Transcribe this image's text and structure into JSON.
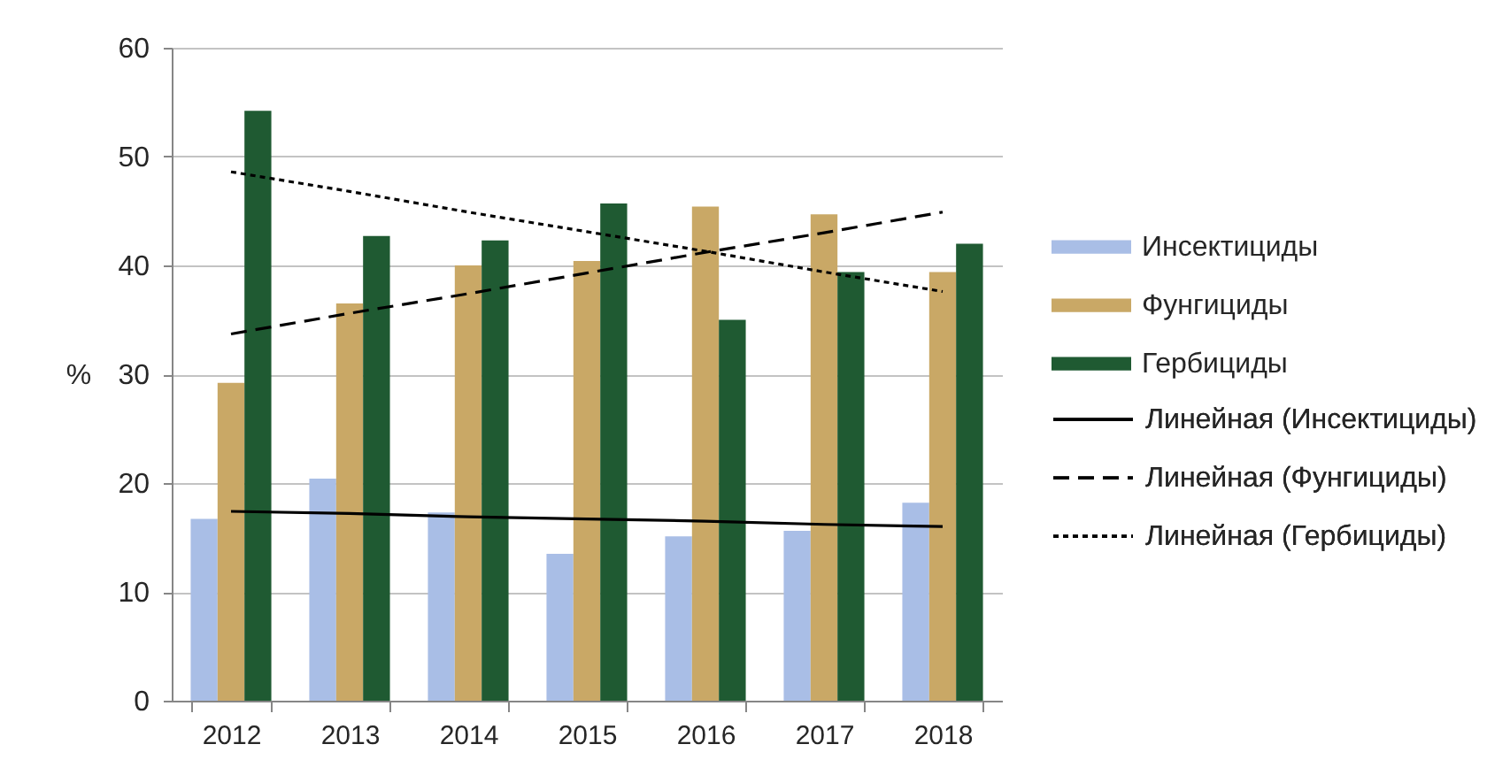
{
  "chart_data": {
    "type": "bar",
    "ylabel": "%",
    "categories": [
      "2012",
      "2013",
      "2014",
      "2015",
      "2016",
      "2017",
      "2018"
    ],
    "series": [
      {
        "name": "Инсектициды",
        "color": "#a9bee6",
        "values": [
          16.7,
          20.4,
          17.3,
          13.5,
          15.1,
          15.6,
          18.2
        ]
      },
      {
        "name": "Фунгициды",
        "color": "#c9a866",
        "values": [
          29.2,
          36.5,
          40.0,
          40.4,
          45.4,
          44.7,
          39.4
        ]
      },
      {
        "name": "Гербициды",
        "color": "#1f5a32",
        "values": [
          54.2,
          42.7,
          42.3,
          45.7,
          35.0,
          39.4,
          42.0
        ]
      },
      {
        "name": "Линейная (Инсектициды)",
        "type": "line",
        "color": "#000000",
        "line_style": "solid",
        "values": [
          17.4,
          17.2,
          16.9,
          16.7,
          16.5,
          16.2,
          16.0
        ]
      },
      {
        "name": "Линейная (Фунгициды)",
        "type": "line",
        "color": "#000000",
        "line_style": "dashed",
        "values": [
          33.7,
          35.6,
          37.4,
          39.3,
          41.2,
          43.0,
          44.9
        ]
      },
      {
        "name": "Линейная (Гербициды)",
        "type": "line",
        "color": "#000000",
        "line_style": "dotted",
        "values": [
          48.6,
          46.8,
          44.9,
          43.1,
          41.3,
          39.4,
          37.6
        ]
      }
    ],
    "ylim": [
      0,
      60
    ],
    "yticks": [
      0,
      10,
      20,
      30,
      40,
      50,
      60
    ],
    "grid": "y",
    "legend": "right"
  }
}
